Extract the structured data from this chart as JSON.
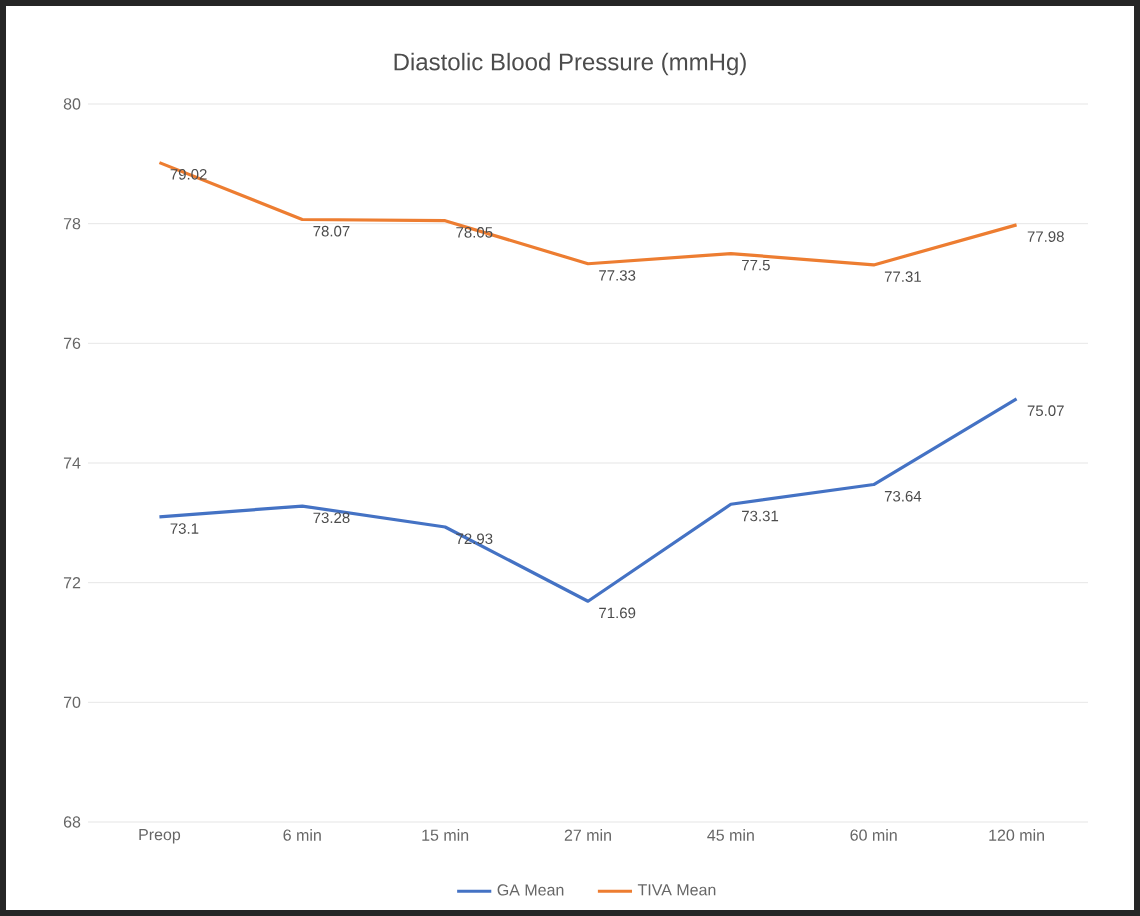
{
  "chart_data": {
    "type": "line",
    "title": "Diastolic Blood Pressure (mmHg)",
    "categories": [
      "Preop",
      "6 min",
      "15 min",
      "27 min",
      "45 min",
      "60 min",
      "120 min"
    ],
    "series": [
      {
        "name": "GA Mean",
        "color": "#4472c4",
        "values": [
          73.1,
          73.28,
          72.93,
          71.69,
          73.31,
          73.64,
          75.07
        ],
        "value_labels": [
          "73.1",
          "73.28",
          "72.93",
          "71.69",
          "73.31",
          "73.64",
          "75.07"
        ]
      },
      {
        "name": "TIVA Mean",
        "color": "#ed7d31",
        "values": [
          79.02,
          78.07,
          78.05,
          77.33,
          77.5,
          77.31,
          77.98
        ],
        "value_labels": [
          "79.02",
          "78.07",
          "78.05",
          "77.33",
          "77.5",
          "77.31",
          "77.98"
        ]
      }
    ],
    "ylim": [
      68,
      80
    ],
    "yticks": [
      68,
      70,
      72,
      74,
      76,
      78,
      80
    ],
    "grid": "y",
    "legend": "bottom",
    "marker": "none",
    "line_style": "solid"
  }
}
